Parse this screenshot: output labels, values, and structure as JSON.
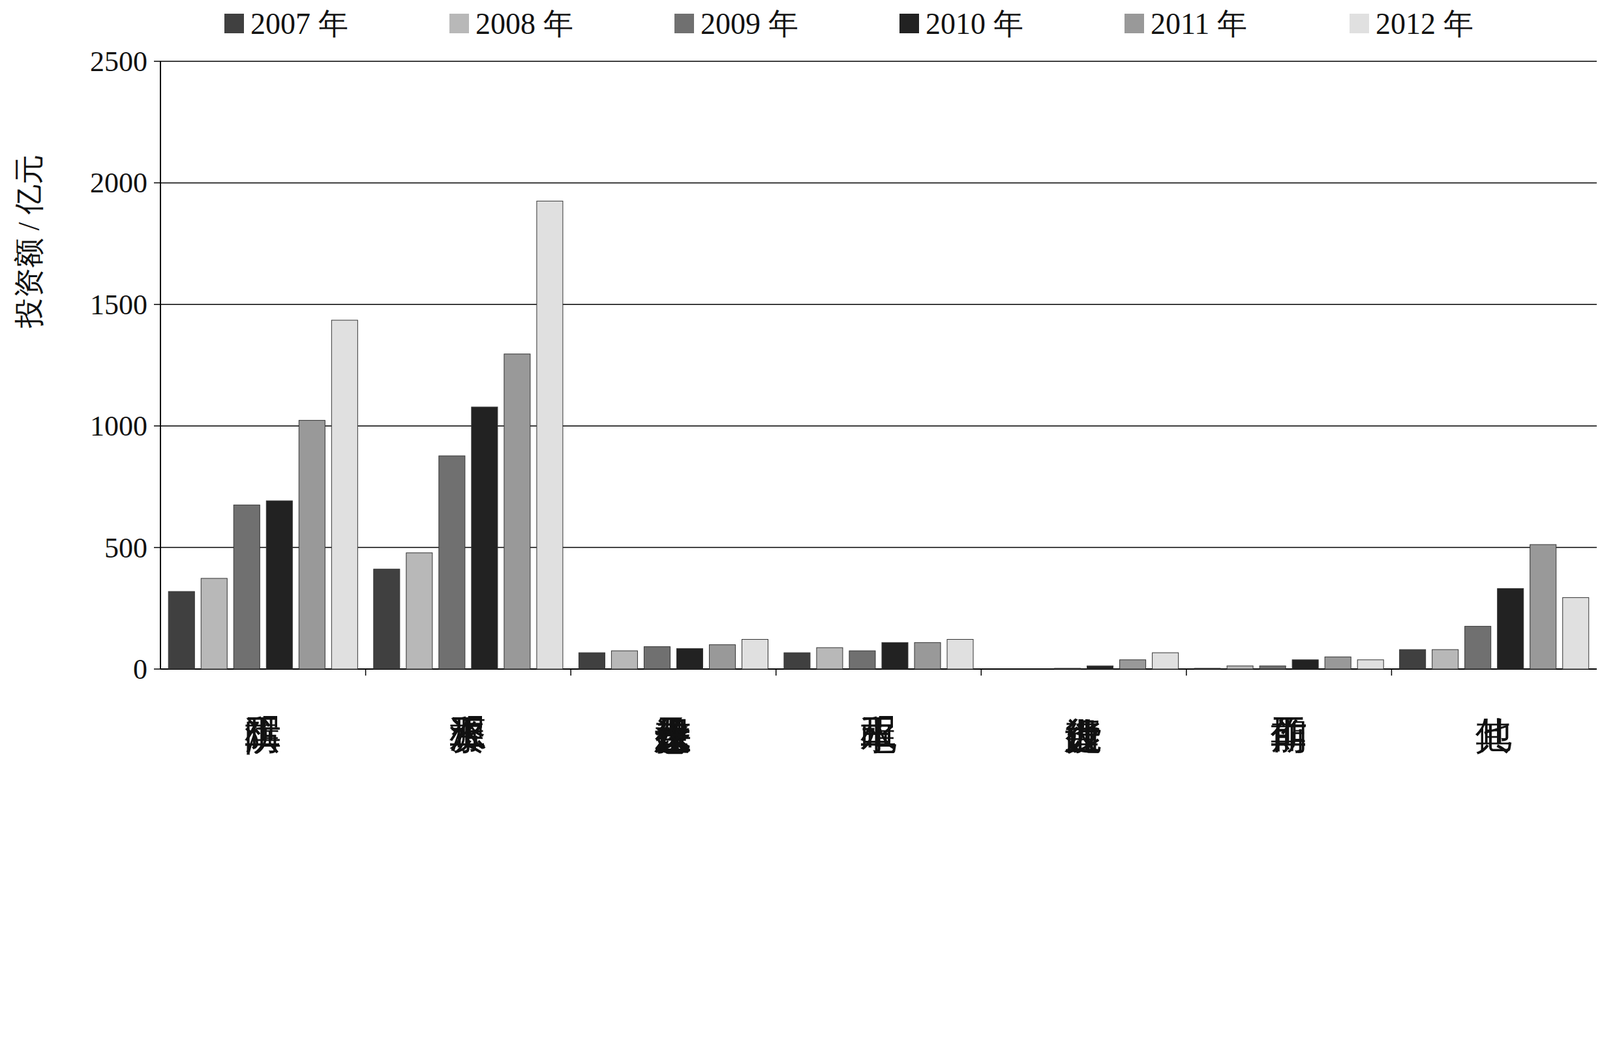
{
  "chart_data": {
    "type": "bar",
    "y_label": "投资额 / 亿元",
    "categories": [
      "防洪工程",
      "水资源工程",
      "水土保持及生态建设",
      "水电工程",
      "行业能力建设",
      "前期工作",
      "其他"
    ],
    "series": [
      {
        "name": "2007 年",
        "color": "#404040",
        "values": [
          319,
          411,
          67,
          67,
          0,
          3,
          80
        ]
      },
      {
        "name": "2008 年",
        "color": "#b8b8b8",
        "values": [
          373,
          478,
          75,
          88,
          0,
          13,
          80
        ]
      },
      {
        "name": "2009 年",
        "color": "#707070",
        "values": [
          675,
          877,
          92,
          75,
          3,
          13,
          176
        ]
      },
      {
        "name": "2010 年",
        "color": "#222222",
        "values": [
          692,
          1078,
          84,
          109,
          13,
          38,
          331
        ]
      },
      {
        "name": "2011 年",
        "color": "#999999",
        "values": [
          1023,
          1296,
          100,
          109,
          38,
          50,
          512
        ]
      },
      {
        "name": "2012 年",
        "color": "#e0e0e0",
        "values": [
          1435,
          1925,
          122,
          122,
          67,
          38,
          294
        ]
      }
    ],
    "ylim": [
      0,
      2500
    ],
    "yticks": [
      0,
      500,
      1000,
      1500,
      2000,
      2500
    ],
    "grid": true,
    "legend": "top"
  }
}
